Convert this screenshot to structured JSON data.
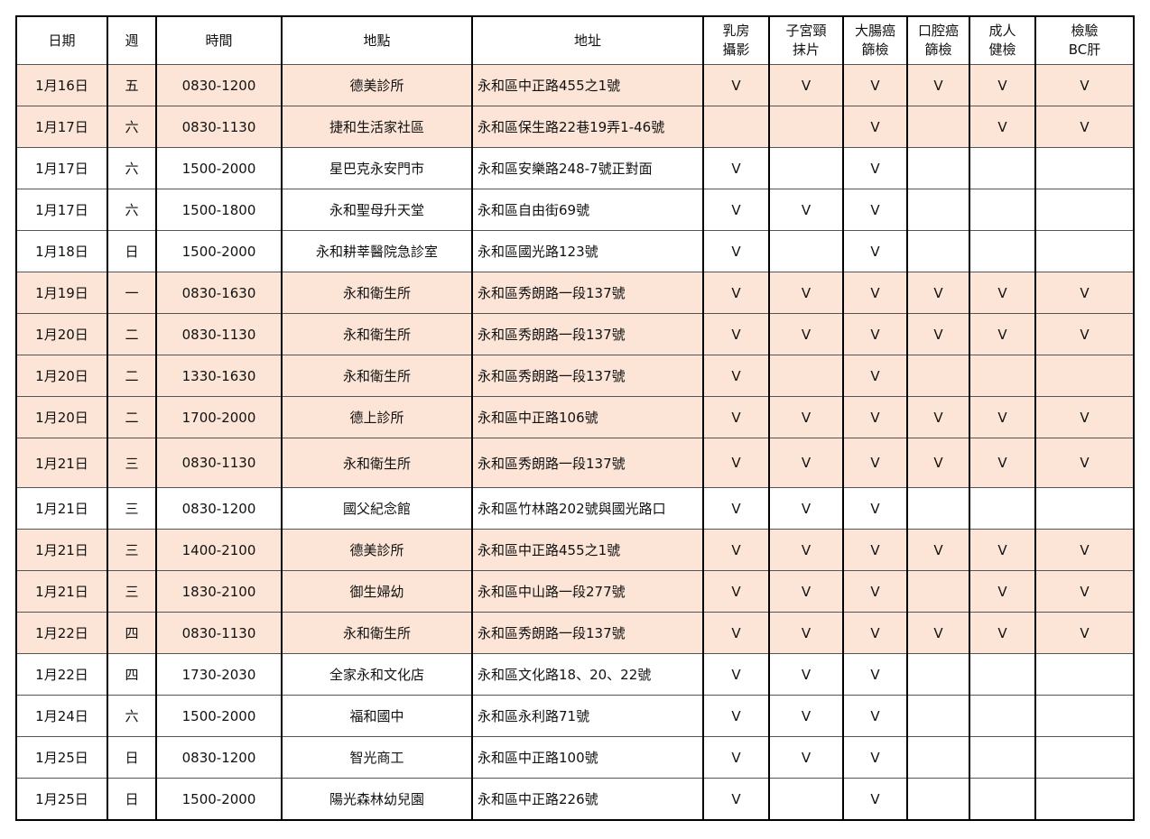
{
  "table": {
    "header": [
      [
        "日期"
      ],
      [
        "週"
      ],
      [
        "時間"
      ],
      [
        "地點"
      ],
      [
        "地址"
      ],
      [
        "乳房",
        "攝影"
      ],
      [
        "子宮頸",
        "抹片"
      ],
      [
        "大腸癌",
        "篩檢"
      ],
      [
        "口腔癌",
        "篩檢"
      ],
      [
        "成人",
        "健檢"
      ],
      [
        "檢驗",
        "BC肝"
      ]
    ],
    "rows": [
      [
        "1月16日",
        "五",
        "0830-1200",
        "德美診所",
        "永和區中正路455之1號",
        "V",
        "V",
        "V",
        "V",
        "V",
        "V"
      ],
      [
        "1月17日",
        "六",
        "0830-1130",
        "捷和生活家社區",
        "永和區保生路22巷19弄1-46號",
        null,
        null,
        "V",
        null,
        "V",
        "V"
      ],
      [
        "1月17日",
        "六",
        "1500-2000",
        "星巴克永安門市",
        "永和區安樂路248-7號正對面",
        "V",
        null,
        "V",
        null,
        null,
        null
      ],
      [
        "1月17日",
        "六",
        "1500-1800",
        "永和聖母升天堂",
        "永和區自由街69號",
        "V",
        "V",
        "V",
        null,
        null,
        null
      ],
      [
        "1月18日",
        "日",
        "1500-2000",
        "永和耕莘醫院急診室",
        "永和區國光路123號",
        "V",
        null,
        "V",
        null,
        null,
        null
      ],
      [
        "1月19日",
        "一",
        "0830-1630",
        "永和衛生所",
        "永和區秀朗路一段137號",
        "V",
        "V",
        "V",
        "V",
        "V",
        "V"
      ],
      [
        "1月20日",
        "二",
        "0830-1130",
        "永和衛生所",
        "永和區秀朗路一段137號",
        "V",
        "V",
        "V",
        "V",
        "V",
        "V"
      ],
      [
        "1月20日",
        "二",
        "1330-1630",
        "永和衛生所",
        "永和區秀朗路一段137號",
        "V",
        null,
        "V",
        null,
        null,
        null
      ],
      [
        "1月20日",
        "二",
        "1700-2000",
        "德上診所",
        "永和區中正路106號",
        "V",
        "V",
        "V",
        "V",
        "V",
        "V"
      ],
      [
        "1月21日",
        "三",
        "0830-1130",
        "永和衛生所",
        "永和區秀朗路一段137號",
        "V",
        "V",
        "V",
        "V",
        "V",
        "V"
      ],
      [
        "1月21日",
        "三",
        "0830-1200",
        "國父紀念館",
        "永和區竹林路202號與國光路口",
        "V",
        "V",
        "V",
        null,
        null,
        null
      ],
      [
        "1月21日",
        "三",
        "1400-2100",
        "德美診所",
        "永和區中正路455之1號",
        "V",
        "V",
        "V",
        "V",
        "V",
        "V"
      ],
      [
        "1月21日",
        "三",
        "1830-2100",
        "御生婦幼",
        "永和區中山路一段277號",
        "V",
        "V",
        "V",
        null,
        "V",
        "V"
      ],
      [
        "1月22日",
        "四",
        "0830-1130",
        "永和衛生所",
        "永和區秀朗路一段137號",
        "V",
        "V",
        "V",
        "V",
        "V",
        "V"
      ],
      [
        "1月22日",
        "四",
        "1730-2030",
        "全家永和文化店",
        "永和區文化路18、20、22號",
        "V",
        "V",
        "V",
        null,
        null,
        null
      ],
      [
        "1月24日",
        "六",
        "1500-2000",
        "福和國中",
        "永和區永利路71號",
        "V",
        "V",
        "V",
        null,
        null,
        null
      ],
      [
        "1月25日",
        "日",
        "0830-1200",
        "智光商工",
        "永和區中正路100號",
        "V",
        "V",
        "V",
        null,
        null,
        null
      ],
      [
        "1月25日",
        "日",
        "1500-2000",
        "陽光森林幼兒園",
        "永和區中正路226號",
        "V",
        null,
        "V",
        null,
        null,
        null
      ]
    ]
  }
}
